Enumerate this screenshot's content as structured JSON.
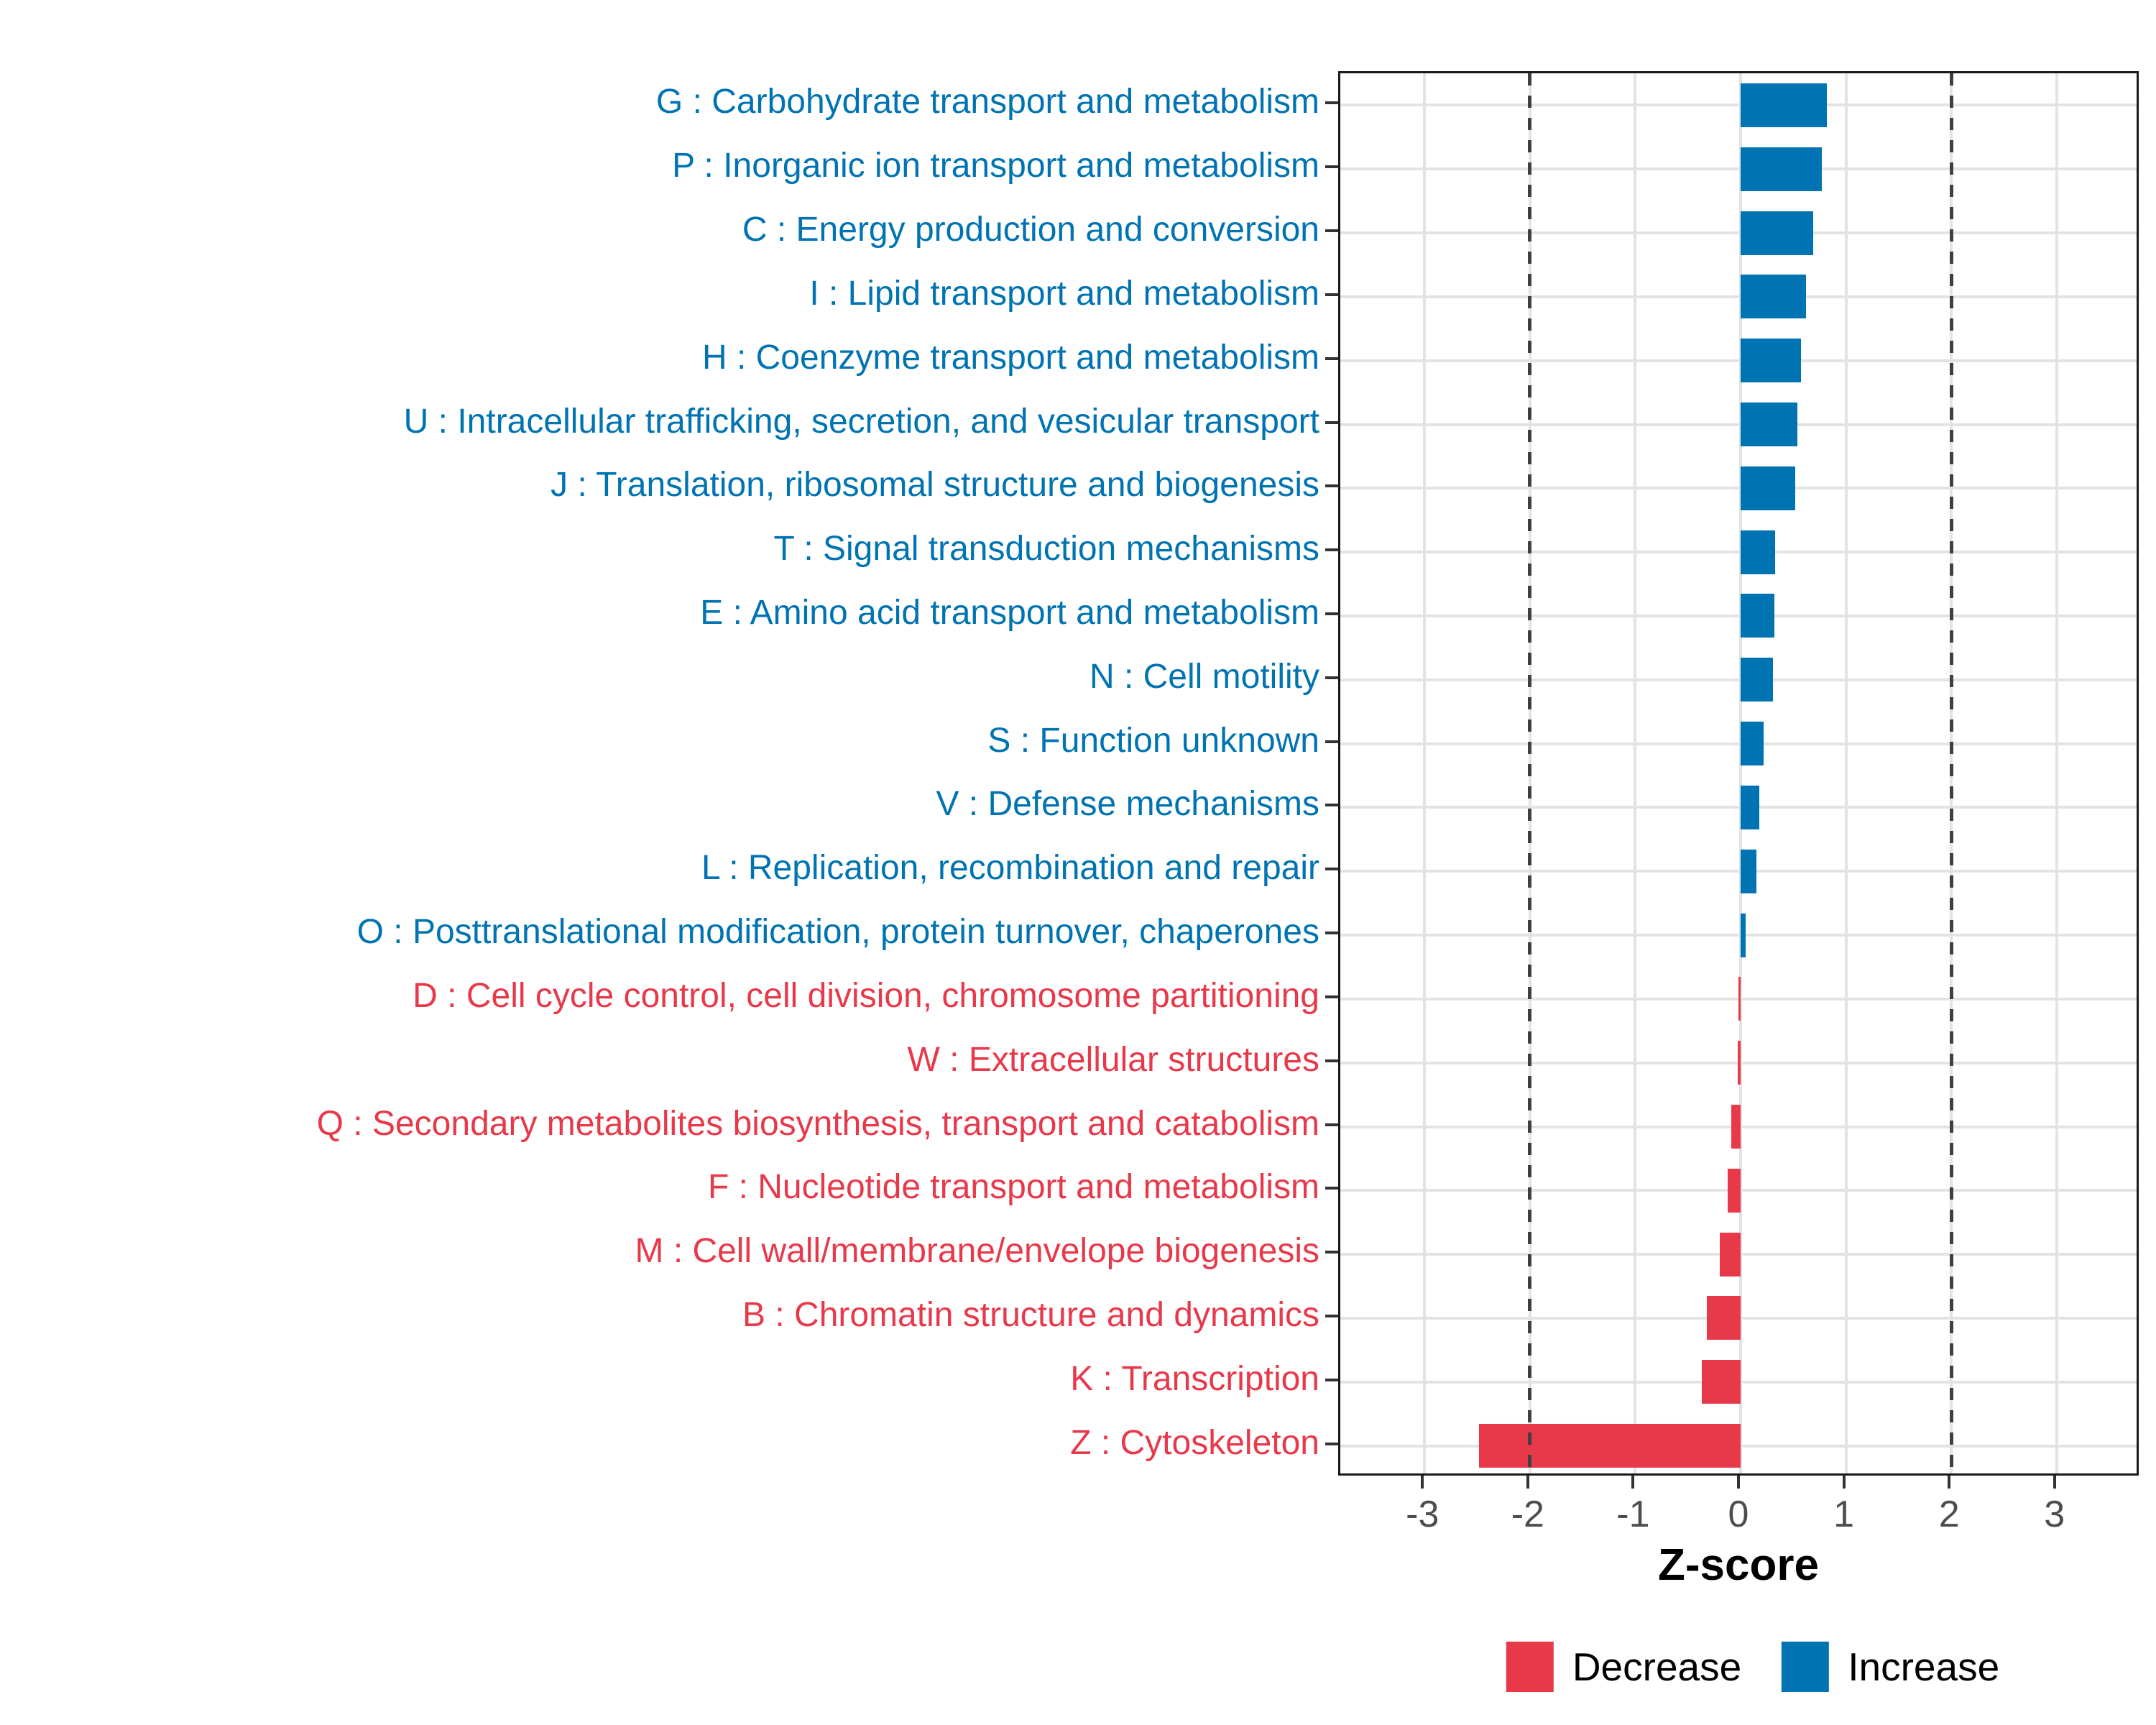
{
  "figure": {
    "xlabel": "Z-score"
  },
  "colors": {
    "increase": "#0074B3",
    "decrease": "#E8394A",
    "grid": "#E3E3E3",
    "panel_border": "#1A1A1A",
    "reference_line": "#404040",
    "tick_mark": "#333333",
    "tick_label": "#4D4D4D",
    "axis_title": "#000000"
  },
  "chart_data": {
    "type": "bar",
    "orientation": "horizontal",
    "title": "",
    "xlabel": "Z-score",
    "ylabel": "",
    "xlim": [
      -3.8,
      3.8
    ],
    "x_ticks": [
      -3,
      -2,
      -1,
      0,
      1,
      2,
      3
    ],
    "reference_lines": [
      -2,
      2
    ],
    "grid": "major gridlines at integer x and at each category row",
    "legend_position": "bottom-center",
    "legend": [
      {
        "label": "Decrease",
        "color": "#E8394A"
      },
      {
        "label": "Increase",
        "color": "#0074B3"
      }
    ],
    "categories": [
      {
        "label": "G : Carbohydrate transport and metabolism",
        "value": 0.82,
        "group": "Increase"
      },
      {
        "label": "P : Inorganic ion transport and metabolism",
        "value": 0.77,
        "group": "Increase"
      },
      {
        "label": "C : Energy production and conversion",
        "value": 0.69,
        "group": "Increase"
      },
      {
        "label": "I : Lipid transport and metabolism",
        "value": 0.62,
        "group": "Increase"
      },
      {
        "label": "H : Coenzyme transport and metabolism",
        "value": 0.57,
        "group": "Increase"
      },
      {
        "label": "U : Intracellular trafficking, secretion, and vesicular transport",
        "value": 0.54,
        "group": "Increase"
      },
      {
        "label": "J : Translation, ribosomal structure and biogenesis",
        "value": 0.52,
        "group": "Increase"
      },
      {
        "label": "T : Signal transduction mechanisms",
        "value": 0.33,
        "group": "Increase"
      },
      {
        "label": "E : Amino acid transport and metabolism",
        "value": 0.32,
        "group": "Increase"
      },
      {
        "label": "N : Cell motility",
        "value": 0.31,
        "group": "Increase"
      },
      {
        "label": "S : Function unknown",
        "value": 0.22,
        "group": "Increase"
      },
      {
        "label": "V : Defense mechanisms",
        "value": 0.18,
        "group": "Increase"
      },
      {
        "label": "L : Replication, recombination and repair",
        "value": 0.15,
        "group": "Increase"
      },
      {
        "label": "O : Posttranslational modification, protein turnover, chaperones",
        "value": 0.05,
        "group": "Increase"
      },
      {
        "label": "D : Cell cycle control, cell division, chromosome partitioning",
        "value": -0.02,
        "group": "Decrease"
      },
      {
        "label": "W : Extracellular structures",
        "value": -0.03,
        "group": "Decrease"
      },
      {
        "label": "Q : Secondary metabolites biosynthesis, transport and catabolism",
        "value": -0.09,
        "group": "Decrease"
      },
      {
        "label": "F : Nucleotide transport and metabolism",
        "value": -0.12,
        "group": "Decrease"
      },
      {
        "label": "M : Cell wall/membrane/envelope biogenesis",
        "value": -0.2,
        "group": "Decrease"
      },
      {
        "label": "B : Chromatin structure and dynamics",
        "value": -0.32,
        "group": "Decrease"
      },
      {
        "label": "K : Transcription",
        "value": -0.37,
        "group": "Decrease"
      },
      {
        "label": "Z : Cytoskeleton",
        "value": -2.48,
        "group": "Decrease"
      }
    ]
  }
}
